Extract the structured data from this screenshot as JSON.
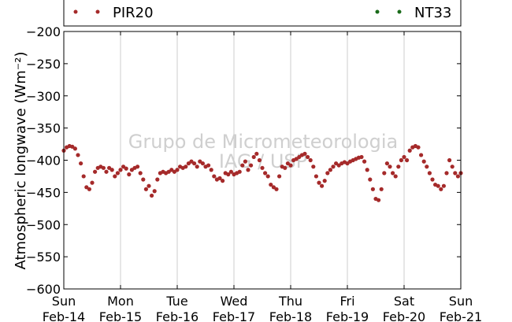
{
  "chart_data": {
    "type": "scatter",
    "ylabel": "Atmospheric longwave (Wm⁻²)",
    "ylim": [
      -600,
      -200
    ],
    "yticks": [
      -200,
      -250,
      -300,
      -350,
      -400,
      -450,
      -500,
      -550,
      -600
    ],
    "ytick_labels": [
      "−200",
      "−250",
      "−300",
      "−350",
      "−400",
      "−450",
      "−500",
      "−550",
      "−600"
    ],
    "xlim": [
      0,
      7
    ],
    "xticks": [
      {
        "day": 0,
        "line1": "Sun",
        "line2": "Feb-14"
      },
      {
        "day": 1,
        "line1": "Mon",
        "line2": "Feb-15"
      },
      {
        "day": 2,
        "line1": "Tue",
        "line2": "Feb-16"
      },
      {
        "day": 3,
        "line1": "Wed",
        "line2": "Feb-17"
      },
      {
        "day": 4,
        "line1": "Thu",
        "line2": "Feb-18"
      },
      {
        "day": 5,
        "line1": "Fri",
        "line2": "Feb-19"
      },
      {
        "day": 6,
        "line1": "Sat",
        "line2": "Feb-20"
      },
      {
        "day": 7,
        "line1": "Sun",
        "line2": "Feb-21"
      }
    ],
    "grid": "vertical",
    "legend_position": "top",
    "watermark": [
      "Grupo de Micrometeorologia",
      "IAG / USP"
    ],
    "series": [
      {
        "name": "PIR20",
        "color": "#a52a2a",
        "points": [
          [
            0.0,
            -385
          ],
          [
            0.05,
            -380
          ],
          [
            0.1,
            -378
          ],
          [
            0.15,
            -379
          ],
          [
            0.2,
            -382
          ],
          [
            0.25,
            -392
          ],
          [
            0.3,
            -405
          ],
          [
            0.35,
            -425
          ],
          [
            0.4,
            -442
          ],
          [
            0.45,
            -445
          ],
          [
            0.5,
            -435
          ],
          [
            0.55,
            -418
          ],
          [
            0.6,
            -412
          ],
          [
            0.65,
            -410
          ],
          [
            0.7,
            -412
          ],
          [
            0.75,
            -418
          ],
          [
            0.8,
            -412
          ],
          [
            0.85,
            -415
          ],
          [
            0.9,
            -425
          ],
          [
            0.95,
            -420
          ],
          [
            1.0,
            -415
          ],
          [
            1.05,
            -410
          ],
          [
            1.1,
            -413
          ],
          [
            1.15,
            -422
          ],
          [
            1.2,
            -415
          ],
          [
            1.25,
            -412
          ],
          [
            1.3,
            -410
          ],
          [
            1.35,
            -420
          ],
          [
            1.4,
            -430
          ],
          [
            1.45,
            -445
          ],
          [
            1.5,
            -440
          ],
          [
            1.55,
            -455
          ],
          [
            1.6,
            -448
          ],
          [
            1.65,
            -430
          ],
          [
            1.7,
            -420
          ],
          [
            1.75,
            -418
          ],
          [
            1.8,
            -420
          ],
          [
            1.85,
            -418
          ],
          [
            1.9,
            -415
          ],
          [
            1.95,
            -418
          ],
          [
            2.0,
            -415
          ],
          [
            2.05,
            -410
          ],
          [
            2.1,
            -412
          ],
          [
            2.15,
            -410
          ],
          [
            2.2,
            -405
          ],
          [
            2.25,
            -402
          ],
          [
            2.3,
            -405
          ],
          [
            2.35,
            -410
          ],
          [
            2.4,
            -402
          ],
          [
            2.45,
            -405
          ],
          [
            2.5,
            -410
          ],
          [
            2.55,
            -408
          ],
          [
            2.6,
            -415
          ],
          [
            2.65,
            -425
          ],
          [
            2.7,
            -430
          ],
          [
            2.75,
            -428
          ],
          [
            2.8,
            -432
          ],
          [
            2.85,
            -420
          ],
          [
            2.9,
            -422
          ],
          [
            2.95,
            -418
          ],
          [
            3.0,
            -422
          ],
          [
            3.05,
            -420
          ],
          [
            3.1,
            -418
          ],
          [
            3.15,
            -408
          ],
          [
            3.2,
            -402
          ],
          [
            3.25,
            -415
          ],
          [
            3.3,
            -408
          ],
          [
            3.35,
            -395
          ],
          [
            3.4,
            -390
          ],
          [
            3.45,
            -400
          ],
          [
            3.5,
            -412
          ],
          [
            3.55,
            -420
          ],
          [
            3.6,
            -425
          ],
          [
            3.65,
            -438
          ],
          [
            3.7,
            -442
          ],
          [
            3.75,
            -445
          ],
          [
            3.8,
            -425
          ],
          [
            3.85,
            -410
          ],
          [
            3.9,
            -412
          ],
          [
            3.95,
            -405
          ],
          [
            4.0,
            -408
          ],
          [
            4.05,
            -400
          ],
          [
            4.1,
            -398
          ],
          [
            4.15,
            -395
          ],
          [
            4.2,
            -392
          ],
          [
            4.25,
            -390
          ],
          [
            4.3,
            -395
          ],
          [
            4.35,
            -400
          ],
          [
            4.4,
            -410
          ],
          [
            4.45,
            -425
          ],
          [
            4.5,
            -435
          ],
          [
            4.55,
            -440
          ],
          [
            4.6,
            -432
          ],
          [
            4.65,
            -420
          ],
          [
            4.7,
            -415
          ],
          [
            4.75,
            -410
          ],
          [
            4.8,
            -405
          ],
          [
            4.85,
            -408
          ],
          [
            4.9,
            -405
          ],
          [
            4.95,
            -403
          ],
          [
            5.0,
            -405
          ],
          [
            5.05,
            -402
          ],
          [
            5.1,
            -400
          ],
          [
            5.15,
            -398
          ],
          [
            5.2,
            -396
          ],
          [
            5.25,
            -395
          ],
          [
            5.3,
            -402
          ],
          [
            5.35,
            -415
          ],
          [
            5.4,
            -430
          ],
          [
            5.45,
            -445
          ],
          [
            5.5,
            -460
          ],
          [
            5.55,
            -462
          ],
          [
            5.6,
            -445
          ],
          [
            5.65,
            -420
          ],
          [
            5.7,
            -405
          ],
          [
            5.75,
            -410
          ],
          [
            5.8,
            -420
          ],
          [
            5.85,
            -425
          ],
          [
            5.9,
            -410
          ],
          [
            5.95,
            -400
          ],
          [
            6.0,
            -395
          ],
          [
            6.05,
            -400
          ],
          [
            6.1,
            -385
          ],
          [
            6.15,
            -380
          ],
          [
            6.2,
            -378
          ],
          [
            6.25,
            -380
          ],
          [
            6.3,
            -392
          ],
          [
            6.35,
            -402
          ],
          [
            6.4,
            -410
          ],
          [
            6.45,
            -420
          ],
          [
            6.5,
            -430
          ],
          [
            6.55,
            -438
          ],
          [
            6.6,
            -440
          ],
          [
            6.65,
            -445
          ],
          [
            6.7,
            -440
          ],
          [
            6.75,
            -420
          ],
          [
            6.8,
            -400
          ],
          [
            6.85,
            -410
          ],
          [
            6.9,
            -420
          ],
          [
            6.95,
            -425
          ],
          [
            7.0,
            -420
          ]
        ]
      },
      {
        "name": "NT33",
        "color": "#1a6b1a",
        "points": []
      }
    ]
  }
}
